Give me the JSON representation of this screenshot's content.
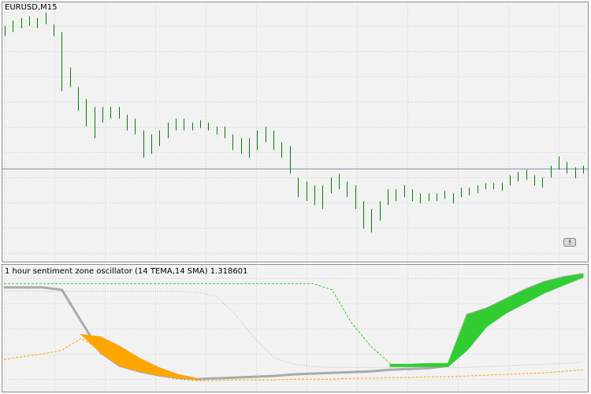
{
  "chart_data": [
    {
      "type": "price-bars",
      "title": "EURUSD,M15",
      "annotation": "!",
      "color": "#008000",
      "line_color": "#7f8fa6",
      "ylim": [
        0,
        330
      ],
      "price_line": 118,
      "high": [
        300,
        307,
        310,
        312,
        310,
        317,
        302,
        292,
        247,
        222,
        207,
        197,
        197,
        197,
        197,
        187,
        182,
        167,
        162,
        167,
        177,
        182,
        182,
        177,
        180,
        177,
        172,
        172,
        162,
        157,
        157,
        167,
        172,
        167,
        152,
        147,
        107,
        102,
        97,
        97,
        107,
        112,
        102,
        97,
        77,
        67,
        77,
        92,
        92,
        97,
        92,
        87,
        87,
        87,
        90,
        87,
        94,
        94,
        97,
        100,
        100,
        100,
        110,
        114,
        117,
        110,
        107,
        122,
        134,
        127,
        120,
        122
      ],
      "low": [
        287,
        292,
        297,
        300,
        297,
        302,
        287,
        217,
        222,
        192,
        172,
        157,
        177,
        182,
        182,
        167,
        162,
        132,
        137,
        147,
        157,
        167,
        167,
        167,
        170,
        167,
        162,
        157,
        142,
        137,
        132,
        142,
        152,
        142,
        132,
        112,
        82,
        77,
        72,
        67,
        87,
        92,
        82,
        67,
        42,
        37,
        52,
        72,
        77,
        82,
        77,
        74,
        77,
        77,
        80,
        74,
        82,
        84,
        87,
        92,
        92,
        90,
        97,
        102,
        104,
        97,
        94,
        107,
        117,
        112,
        106,
        112
      ]
    },
    {
      "type": "oscillator",
      "title": "1 hour sentiment zone oscillator (14 TEMA,14 SMA) 1.318601",
      "ylim": [
        0,
        162
      ],
      "bands": [
        {
          "color": "#ffa500",
          "upper": [
            null,
            null,
            null,
            null,
            73,
            70,
            58,
            43,
            31,
            22,
            17,
            null,
            null,
            null,
            null,
            null,
            null,
            null,
            null,
            null,
            null,
            null,
            null,
            null,
            null,
            null,
            null,
            null,
            null,
            null,
            null
          ],
          "lower": [
            null,
            null,
            null,
            null,
            73,
            50,
            33,
            26,
            21,
            18,
            16,
            null,
            null,
            null,
            null,
            null,
            null,
            null,
            null,
            null,
            null,
            null,
            null,
            null,
            null,
            null,
            null,
            null,
            null,
            null,
            null
          ]
        },
        {
          "color": "#32cd32",
          "upper": [
            null,
            null,
            null,
            null,
            null,
            null,
            null,
            null,
            null,
            null,
            null,
            null,
            null,
            null,
            null,
            null,
            null,
            null,
            null,
            null,
            35,
            35,
            36,
            36,
            98,
            106,
            118,
            130,
            140,
            146,
            150
          ],
          "lower": [
            null,
            null,
            null,
            null,
            null,
            null,
            null,
            null,
            null,
            null,
            null,
            null,
            null,
            null,
            null,
            null,
            null,
            null,
            null,
            null,
            32,
            32,
            32,
            32,
            53,
            83,
            100,
            113,
            126,
            136,
            146
          ]
        }
      ],
      "lines": [
        {
          "color": "#32cd32",
          "style": "dashed",
          "values": [
            138,
            138,
            138,
            138,
            138,
            138,
            138,
            138,
            138,
            138,
            138,
            138,
            138,
            138,
            138,
            138,
            138,
            130,
            88,
            58,
            36,
            null,
            null,
            null,
            null,
            null,
            null,
            null,
            null,
            null,
            null
          ]
        },
        {
          "color": "#b0b0b0",
          "style": "dotted",
          "values": [
            128,
            128,
            128,
            128,
            128,
            128,
            128,
            128,
            128,
            128,
            127,
            122,
            98,
            68,
            43,
            35,
            32,
            31,
            31,
            31,
            31,
            31,
            31,
            31,
            31,
            32,
            33,
            34,
            35,
            36,
            38
          ]
        },
        {
          "color": "#ffa500",
          "style": "dashed",
          "values": [
            41,
            45,
            48,
            53,
            68,
            53,
            38,
            28,
            20,
            16,
            14,
            14,
            15,
            15,
            15,
            16,
            16,
            16,
            17,
            17,
            18,
            18,
            19,
            19,
            20,
            21,
            22,
            23,
            24,
            26,
            28
          ]
        },
        {
          "color": "#aaaaaa",
          "style": "solid",
          "values": [
            133,
            133,
            133,
            130,
            90,
            50,
            33,
            26,
            21,
            18,
            16,
            17,
            18,
            19,
            20,
            22,
            23,
            24,
            25,
            26,
            28,
            29,
            30,
            33,
            98,
            106,
            118,
            130,
            140,
            146,
            150
          ]
        }
      ]
    }
  ]
}
